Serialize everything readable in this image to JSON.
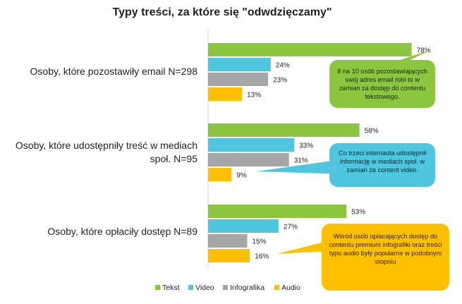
{
  "chart_data": {
    "type": "bar",
    "orientation": "horizontal",
    "title": "Typy treści, za które się \"odwdzięczamy\"",
    "categories": [
      "Osoby, które pozostawiły email N=298",
      "Osoby, które udostępniły treść w mediach społ. N=95",
      "Osoby, które opłaciły dostęp N=89"
    ],
    "category_lines": [
      [
        "Osoby, które pozostawiły email N=298"
      ],
      [
        "Osoby, które udostępniły treść w mediach",
        "społ. N=95"
      ],
      [
        "Osoby, które opłaciły dostęp N=89"
      ]
    ],
    "series": [
      {
        "name": "Tekst",
        "values": [
          78,
          58,
          53
        ],
        "labels": [
          "78%",
          "58%",
          "53%"
        ],
        "color": "#8cc63f"
      },
      {
        "name": "Video",
        "values": [
          24,
          33,
          27
        ],
        "labels": [
          "24%",
          "33%",
          "27%"
        ],
        "color": "#4fc6df"
      },
      {
        "name": "Infografika",
        "values": [
          23,
          31,
          15
        ],
        "labels": [
          "23%",
          "31%",
          "15%"
        ],
        "color": "#a6a6a6"
      },
      {
        "name": "Audio",
        "values": [
          13,
          9,
          16
        ],
        "labels": [
          "13%",
          "9%",
          "16%"
        ],
        "color": "#ffc000"
      }
    ],
    "xlim": [
      0,
      100
    ],
    "legend_position": "bottom-center",
    "grid": false,
    "annotations": [
      {
        "category": 0,
        "text": "8 na 10 osób pozostawiających swój adres email robi to w zamian za dostęp do contentu tekstowego.",
        "color": "#8cc63f"
      },
      {
        "category": 1,
        "text": "Co trzeci internauta udostępnił informację w mediach społ. w zamian za content video.",
        "color": "#4fc6df"
      },
      {
        "category": 2,
        "text": "Wśród osób opłacających dostęp do contentu premium infografiki oraz treści typu audio były popularne w podobnym stopniu",
        "color": "#ffc000"
      }
    ]
  }
}
